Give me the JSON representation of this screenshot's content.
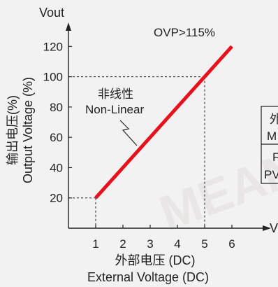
{
  "chart_data": {
    "type": "line",
    "y_axis_title": "Vout",
    "x_axis_end_label": "V",
    "ylabel_cn": "输出电压(%)",
    "ylabel_en": "Output Voltage (%)",
    "xlabel_cn": "外部电压 (DC)",
    "xlabel_en": "External Voltage (DC)",
    "x_ticks": [
      1,
      2,
      3,
      4,
      5,
      6
    ],
    "y_ticks": [
      20,
      40,
      60,
      80,
      100,
      120
    ],
    "xlim": [
      0,
      6.5
    ],
    "ylim": [
      0,
      128
    ],
    "series": [
      {
        "x": [
          1,
          6
        ],
        "y": [
          20,
          120
        ],
        "color": "#e8101c"
      }
    ],
    "reference_lines": [
      {
        "x": 1,
        "y": 20
      },
      {
        "x": 5,
        "y": 100
      }
    ],
    "annotations": {
      "ovp": "OVP>115%",
      "nonlinear_cn": "非线性",
      "nonlinear_en": "Non-Linear"
    },
    "side_table": {
      "rows": [
        {
          "top": "外",
          "bottom": "M"
        },
        {
          "top": "F",
          "bottom": "PV"
        }
      ]
    },
    "watermark": "MEAN"
  }
}
